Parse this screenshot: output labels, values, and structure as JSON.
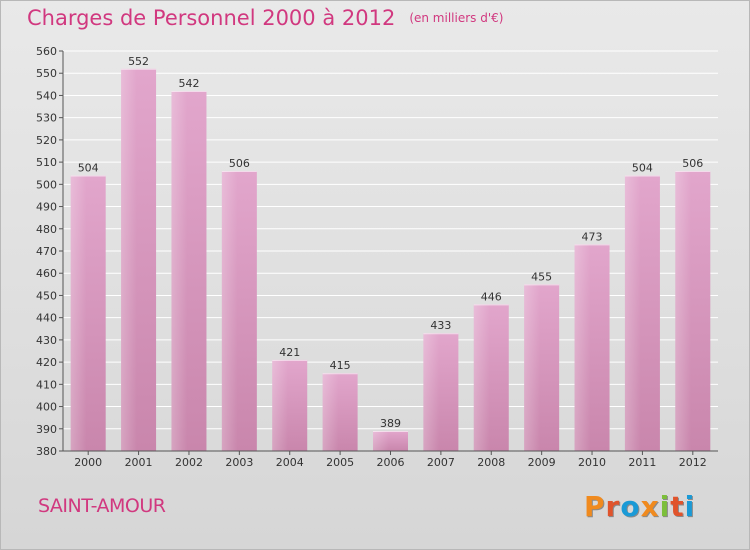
{
  "header": {
    "title": "Charges de Personnel 2000 à 2012",
    "subtitle": "(en milliers d'€)"
  },
  "footer": {
    "place": "SAINT-AMOUR",
    "logo": "Proxiti"
  },
  "colors": {
    "accent": "#d1387f",
    "bar": "#c986ac",
    "bar_light": "#e2a6cc",
    "logo_letters": [
      "#f08a1e",
      "#e0542c",
      "#1a9ad6",
      "#f08a1e",
      "#7cbf3a",
      "#e0542c",
      "#1a9ad6"
    ]
  },
  "chart_data": {
    "type": "bar",
    "title": "Charges de Personnel 2000 à 2012",
    "subtitle": "(en milliers d'€)",
    "categories": [
      "2000",
      "2001",
      "2002",
      "2003",
      "2004",
      "2005",
      "2006",
      "2007",
      "2008",
      "2009",
      "2010",
      "2011",
      "2012"
    ],
    "values": [
      504,
      552,
      542,
      506,
      421,
      415,
      389,
      433,
      446,
      455,
      473,
      504,
      506
    ],
    "ylim": [
      380,
      560
    ],
    "yticks": [
      380,
      390,
      400,
      410,
      420,
      430,
      440,
      450,
      460,
      470,
      480,
      490,
      500,
      510,
      520,
      530,
      540,
      550,
      560
    ],
    "grid": true,
    "data_labels": true
  }
}
